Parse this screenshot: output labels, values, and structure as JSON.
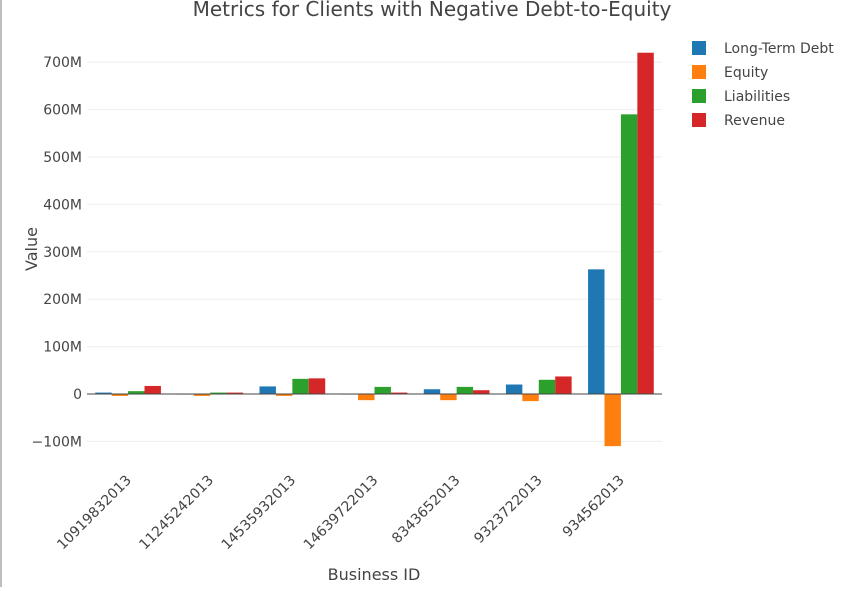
{
  "chart_data": {
    "type": "bar",
    "title": "Metrics for Clients with Negative Debt-to-Equity",
    "xlabel": "Business ID",
    "ylabel": "Value",
    "ylim": [
      -120,
      760
    ],
    "yticks": [
      {
        "value": 700,
        "label": "700M"
      },
      {
        "value": 600,
        "label": "600M"
      },
      {
        "value": 500,
        "label": "500M"
      },
      {
        "value": 400,
        "label": "400M"
      },
      {
        "value": 300,
        "label": "300M"
      },
      {
        "value": 200,
        "label": "200M"
      },
      {
        "value": 100,
        "label": "100M"
      },
      {
        "value": 0,
        "label": "0"
      },
      {
        "value": -100,
        "label": "−100M"
      }
    ],
    "grid": true,
    "legend_position": "top-right",
    "categories": [
      "10919832013",
      "11245242013",
      "14535932013",
      "14639722013",
      "8343652013",
      "9323722013",
      "934562013"
    ],
    "series": [
      {
        "name": "Long-Term Debt",
        "color": "#1f77b4",
        "values": [
          3,
          0.5,
          16,
          0.5,
          10,
          20,
          263
        ]
      },
      {
        "name": "Equity",
        "color": "#ff7f0e",
        "values": [
          -4,
          -4,
          -4,
          -13,
          -13,
          -15,
          -110
        ]
      },
      {
        "name": "Liabilities",
        "color": "#2ca02c",
        "values": [
          6,
          3,
          32,
          15,
          15,
          30,
          590
        ]
      },
      {
        "name": "Revenue",
        "color": "#d62728",
        "values": [
          17,
          3,
          33,
          3,
          8,
          37,
          720
        ]
      }
    ]
  }
}
